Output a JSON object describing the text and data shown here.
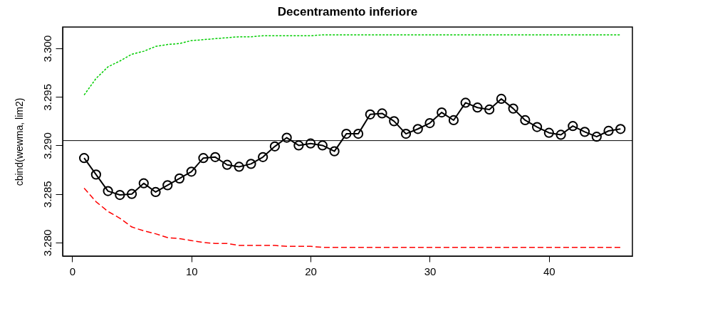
{
  "chart_data": {
    "type": "line",
    "title": "Decentramento inferiore",
    "ylabel": "cbind(wewma, lim2)",
    "x": [
      1,
      2,
      3,
      4,
      5,
      6,
      7,
      8,
      9,
      10,
      11,
      12,
      13,
      14,
      15,
      16,
      17,
      18,
      19,
      20,
      21,
      22,
      23,
      24,
      25,
      26,
      27,
      28,
      29,
      30,
      31,
      32,
      33,
      34,
      35,
      36,
      37,
      38,
      39,
      40,
      41,
      42,
      43,
      44,
      45,
      46
    ],
    "series": [
      {
        "color": "#000000",
        "marker": "circle",
        "line_style": "solid",
        "values": [
          3.2887,
          3.287,
          3.2853,
          3.2849,
          3.285,
          3.2861,
          3.2852,
          3.2859,
          3.2866,
          3.2873,
          3.2887,
          3.2888,
          3.288,
          3.2878,
          3.2881,
          3.2888,
          3.2899,
          3.2908,
          3.29,
          3.2902,
          3.29,
          3.2894,
          3.2912,
          3.2912,
          3.2932,
          3.2933,
          3.2925,
          3.2912,
          3.2917,
          3.2923,
          3.2934,
          3.2926,
          3.2944,
          3.2939,
          3.2937,
          3.2948,
          3.2938,
          3.2926,
          3.2919,
          3.2913,
          3.2911,
          3.292,
          3.2914,
          3.2909,
          3.2915,
          3.2917
        ]
      },
      {
        "color": "#00cd00",
        "marker": "none",
        "line_style": "dotted",
        "values": [
          3.2952,
          3.2969,
          3.2981,
          3.2987,
          3.2994,
          3.2997,
          3.3002,
          3.3004,
          3.3005,
          3.3008,
          3.3009,
          3.301,
          3.3011,
          3.3012,
          3.3012,
          3.3013,
          3.3013,
          3.3013,
          3.3013,
          3.3013,
          3.3014,
          3.3014,
          3.3014,
          3.3014,
          3.3014,
          3.3014,
          3.3014,
          3.3014,
          3.3014,
          3.3014,
          3.3014,
          3.3014,
          3.3014,
          3.3014,
          3.3014,
          3.3014,
          3.3014,
          3.3014,
          3.3014,
          3.3014,
          3.3014,
          3.3014,
          3.3014,
          3.3014,
          3.3014,
          3.3014
        ]
      },
      {
        "color": "#ff0000",
        "marker": "none",
        "line_style": "dashed",
        "values": [
          3.2856,
          3.2842,
          3.2832,
          3.2825,
          3.2816,
          3.2812,
          3.2809,
          3.2805,
          3.2804,
          3.2802,
          3.28,
          3.2799,
          3.2799,
          3.2797,
          3.2797,
          3.2797,
          3.2797,
          3.2796,
          3.2796,
          3.2796,
          3.2795,
          3.2795,
          3.2795,
          3.2795,
          3.2795,
          3.2795,
          3.2795,
          3.2795,
          3.2795,
          3.2795,
          3.2795,
          3.2795,
          3.2795,
          3.2795,
          3.2795,
          3.2795,
          3.2795,
          3.2795,
          3.2795,
          3.2795,
          3.2795,
          3.2795,
          3.2795,
          3.2795,
          3.2795,
          3.2795
        ]
      }
    ],
    "ref_lines": [
      {
        "axis": "y",
        "value": 3.2905,
        "color": "#000000",
        "line_style": "solid"
      }
    ],
    "xlim": [
      -0.8,
      47.0
    ],
    "xticks": [
      0,
      10,
      20,
      30,
      40
    ],
    "ylim": [
      3.2786,
      3.3022
    ],
    "yticks": [
      {
        "value": 3.28,
        "label": "3.280"
      },
      {
        "value": 3.285,
        "label": "3.285"
      },
      {
        "value": 3.29,
        "label": "3.290"
      },
      {
        "value": 3.295,
        "label": "3.295"
      },
      {
        "value": 3.3,
        "label": "3.300"
      }
    ],
    "grid": false,
    "legend": false
  }
}
